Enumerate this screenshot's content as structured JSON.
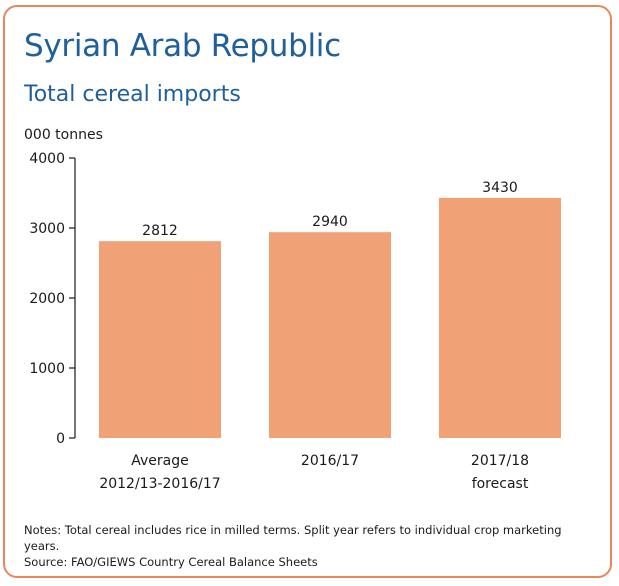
{
  "chart_data": {
    "type": "bar",
    "title": "Syrian Arab Republic",
    "subtitle": "Total cereal imports",
    "ylabel": "000 tonnes",
    "xlabel": "",
    "ylim": [
      0,
      4000
    ],
    "yticks": [
      0,
      1000,
      2000,
      3000,
      4000
    ],
    "categories": [
      [
        "Average",
        "2012/13-2016/17"
      ],
      [
        "2016/17"
      ],
      [
        "2017/18",
        "forecast"
      ]
    ],
    "values": [
      2812,
      2940,
      3430
    ],
    "value_labels": [
      "2812",
      "2940",
      "3430"
    ],
    "grid": false,
    "legend": "none",
    "bar_color": "#f0a276"
  },
  "notes": "Notes: Total cereal includes rice in milled terms. Split year refers to individual crop marketing years.",
  "source": "Source: FAO/GIEWS Country Cereal Balance Sheets",
  "colors": {
    "border": "#e8885a",
    "title": "#1f5f9c",
    "bar": "#f0a276"
  }
}
